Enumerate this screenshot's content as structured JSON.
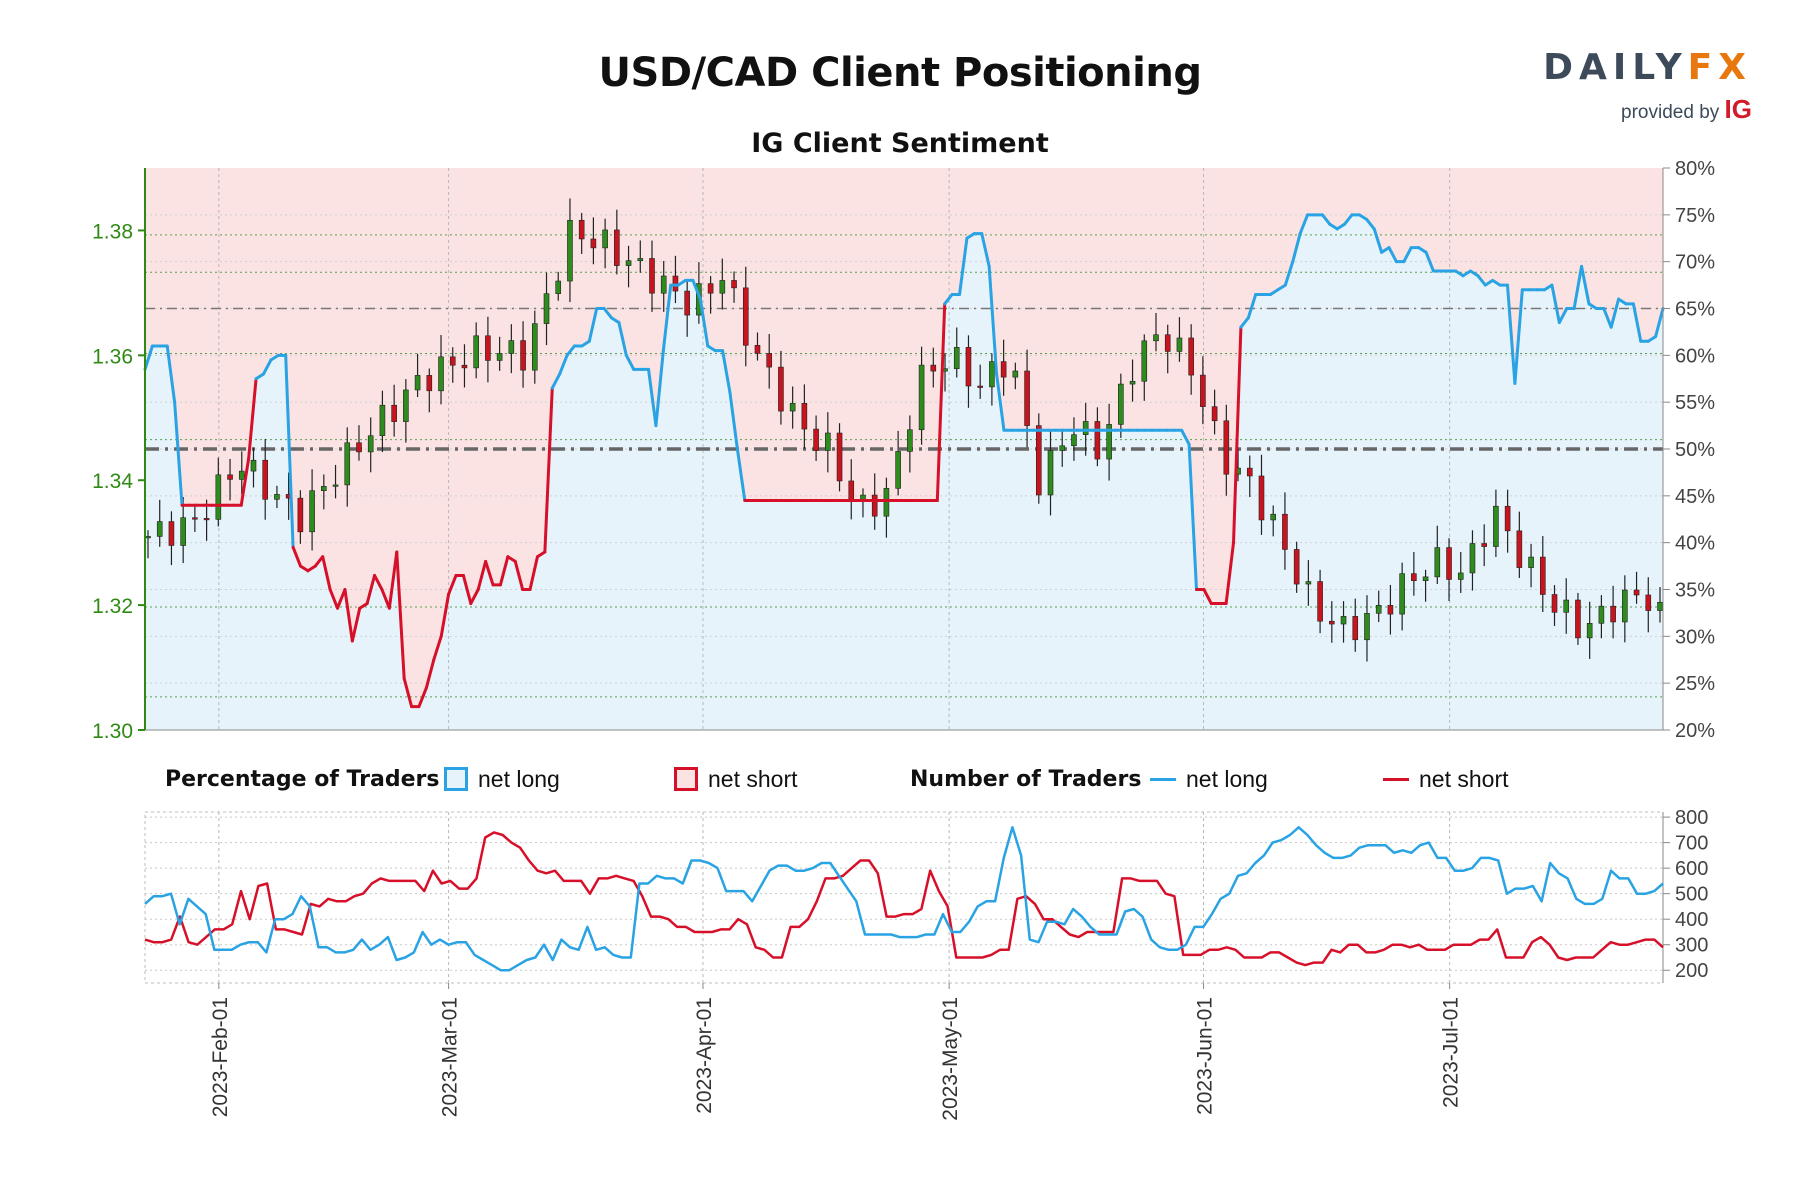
{
  "title": "USD/CAD Client Positioning",
  "subtitle": "IG Client Sentiment",
  "logo": {
    "brand_main": "DAILY",
    "brand_fx": "FX",
    "provided_by": "provided by",
    "ig": "IG"
  },
  "colors": {
    "net_long": "#29a3e3",
    "net_short": "#d7102a",
    "bull_candle": "#2e8b1e",
    "bear_candle": "#c8141e",
    "price_axis": "#2f8a14",
    "long_fill": "#e6f3fb",
    "short_fill": "#fbe3e4"
  },
  "legend": {
    "pct_header": "Percentage of Traders",
    "pct_long": "net long",
    "pct_short": "net short",
    "num_header": "Number of Traders",
    "num_long": "net long",
    "num_short": "net short"
  },
  "chart_data": {
    "type": "candlestick + line",
    "x_start": "2023-01-23",
    "x_end": "2023-07-27",
    "x_ticks": [
      "2023-Feb-01",
      "2023-Mar-01",
      "2023-Apr-01",
      "2023-May-01",
      "2023-Jun-01",
      "2023-Jul-01"
    ],
    "price_axis": {
      "ylim": [
        1.3,
        1.39
      ],
      "ticks": [
        "1.30",
        "1.32",
        "1.34",
        "1.36",
        "1.38"
      ],
      "reference_lines": [
        1.3197,
        1.3465,
        1.3603,
        1.3733,
        1.3793,
        1.3053
      ]
    },
    "sentiment_axis": {
      "ylim": [
        20,
        80
      ],
      "ticks": [
        "20%",
        "25%",
        "30%",
        "35%",
        "40%",
        "45%",
        "50%",
        "55%",
        "60%",
        "65%",
        "70%",
        "75%",
        "80%"
      ],
      "reference_lines": [
        50,
        65
      ]
    },
    "net_long_pct": [
      58.5,
      61,
      61,
      61,
      55,
      44,
      44,
      44,
      44,
      44,
      44,
      44,
      44,
      44,
      49,
      57.5,
      58,
      59.5,
      60,
      60,
      39.5,
      37.5,
      37,
      37.5,
      38.5,
      35,
      33,
      35,
      29.5,
      33,
      33.5,
      36.5,
      35,
      33,
      39,
      25.5,
      22.5,
      22.5,
      24.5,
      27.5,
      30,
      34.5,
      36.5,
      36.5,
      33.5,
      35,
      38,
      35.5,
      35.5,
      38.5,
      38,
      35,
      35,
      38.5,
      39,
      56.5,
      58,
      60,
      61,
      61,
      61.5,
      65,
      65,
      64,
      63.5,
      60,
      58.5,
      58.5,
      58.5,
      52.5,
      60.5,
      67.5,
      67.5,
      68,
      68,
      66,
      61,
      60.5,
      60.5,
      56,
      50,
      44.5,
      44.5,
      44.5,
      44.5,
      44.5,
      44.5,
      44.5,
      44.5,
      44.5,
      44.5,
      44.5,
      44.5,
      44.5,
      44.5,
      44.5,
      44.5,
      44.5,
      44.5,
      44.5,
      44.5,
      44.5,
      44.5,
      44.5,
      44.5,
      44.5,
      44.5,
      44.5,
      65.5,
      66.5,
      66.5,
      72.5,
      73,
      73,
      69.5,
      58,
      52,
      52,
      52,
      52,
      52,
      52,
      52,
      52,
      52,
      52,
      52,
      52,
      52,
      52,
      52,
      52,
      52,
      52,
      52,
      52,
      52,
      52,
      52,
      52,
      52,
      50.5,
      35,
      35,
      33.5,
      33.5,
      33.5,
      40,
      63,
      64,
      66.5,
      66.5,
      66.5,
      67,
      67.5,
      70,
      73,
      75,
      75,
      75,
      74,
      73.5,
      74,
      75,
      75,
      74.5,
      73.5,
      71,
      71.5,
      70,
      70,
      71.5,
      71.5,
      71,
      69,
      69,
      69,
      69,
      68.5,
      69,
      68.5,
      67.5,
      68,
      67.5,
      67.5,
      57,
      67,
      67,
      67,
      67,
      67.5,
      63.5,
      65,
      65,
      69.5,
      65.5,
      65,
      65,
      63,
      66,
      65.5,
      65.5,
      61.5,
      61.5,
      62,
      65
    ],
    "price_candles_count": 130,
    "net_long_traders": [
      460,
      490,
      490,
      500,
      380,
      480,
      450,
      420,
      280,
      280,
      280,
      300,
      310,
      310,
      270,
      400,
      400,
      420,
      490,
      450,
      290,
      290,
      270,
      270,
      280,
      320,
      280,
      300,
      330,
      240,
      250,
      270,
      350,
      300,
      320,
      300,
      310,
      310,
      260,
      240,
      220,
      200,
      200,
      220,
      240,
      250,
      300,
      240,
      320,
      290,
      280,
      370,
      280,
      290,
      260,
      250,
      250,
      540,
      540,
      570,
      560,
      560,
      540,
      630,
      630,
      620,
      600,
      510,
      510,
      510,
      470,
      530,
      590,
      610,
      610,
      590,
      590,
      600,
      620,
      620,
      570,
      520,
      470,
      340,
      340,
      340,
      340,
      330,
      330,
      330,
      340,
      340,
      420,
      350,
      350,
      390,
      450,
      470,
      470,
      640,
      760,
      650,
      320,
      310,
      390,
      390,
      380,
      440,
      410,
      370,
      340,
      340,
      340,
      430,
      440,
      410,
      320,
      290,
      280,
      280,
      300,
      370,
      370,
      420,
      480,
      500,
      570,
      580,
      620,
      650,
      700,
      710,
      730,
      760,
      730,
      690,
      660,
      640,
      640,
      650,
      680,
      690,
      690,
      690,
      660,
      670,
      660,
      690,
      700,
      640,
      640,
      590,
      590,
      600,
      640,
      640,
      630,
      500,
      520,
      520,
      530,
      470,
      620,
      580,
      560,
      480,
      460,
      460,
      480,
      590,
      560,
      560,
      500,
      500,
      510,
      540
    ],
    "net_short_traders": [
      320,
      310,
      310,
      320,
      410,
      310,
      300,
      330,
      360,
      360,
      380,
      510,
      400,
      530,
      540,
      360,
      360,
      350,
      340,
      460,
      450,
      480,
      470,
      470,
      490,
      500,
      540,
      560,
      550,
      550,
      550,
      550,
      510,
      590,
      540,
      550,
      520,
      520,
      560,
      720,
      740,
      730,
      700,
      680,
      630,
      590,
      580,
      590,
      550,
      550,
      550,
      500,
      560,
      560,
      570,
      560,
      550,
      490,
      410,
      410,
      400,
      370,
      370,
      350,
      350,
      350,
      360,
      360,
      400,
      380,
      290,
      280,
      250,
      250,
      370,
      370,
      400,
      470,
      560,
      560,
      570,
      600,
      630,
      630,
      580,
      410,
      410,
      420,
      420,
      440,
      590,
      510,
      450,
      250,
      250,
      250,
      250,
      260,
      280,
      280,
      480,
      490,
      460,
      400,
      400,
      370,
      340,
      330,
      350,
      350,
      350,
      350,
      560,
      560,
      550,
      550,
      550,
      500,
      490,
      260,
      260,
      260,
      280,
      280,
      290,
      280,
      250,
      250,
      250,
      270,
      270,
      250,
      230,
      220,
      230,
      230,
      280,
      270,
      300,
      300,
      270,
      270,
      280,
      300,
      300,
      290,
      300,
      280,
      280,
      280,
      300,
      300,
      300,
      320,
      320,
      360,
      250,
      250,
      250,
      310,
      330,
      300,
      250,
      240,
      250,
      250,
      250,
      280,
      310,
      300,
      300,
      310,
      320,
      320,
      290
    ],
    "lower_axis": {
      "ylim": [
        150,
        820
      ],
      "ticks": [
        "200",
        "300",
        "400",
        "500",
        "600",
        "700",
        "800"
      ]
    }
  }
}
